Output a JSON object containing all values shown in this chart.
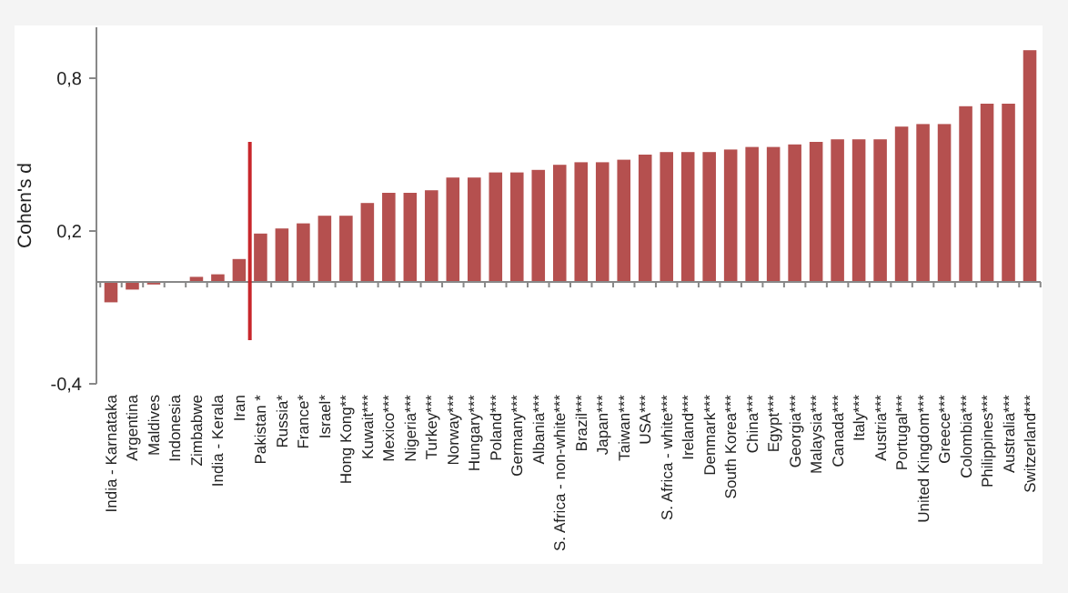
{
  "chart_data": {
    "type": "bar",
    "ylabel": "Cohen's d",
    "categories": [
      "India - Karnataka",
      "Argentina",
      "Maldives",
      "Indonesia",
      "Zimbabwe",
      "India - Kerala",
      "Iran",
      "Pakistan *",
      "Russia*",
      "France*",
      "Israel*",
      "Hong Kong**",
      "Kuwait***",
      "Mexico***",
      "Nigeria***",
      "Turkey***",
      "Norway***",
      "Hungary***",
      "Poland***",
      "Germany***",
      "Albania***",
      "S. Africa - non-white***",
      "Brazil***",
      "Japan***",
      "Taiwan***",
      "USA***",
      "S. Africa - white***",
      "Ireland***",
      "Denmark***",
      "South Korea***",
      "China***",
      "Egypt***",
      "Georgia***",
      "Malaysia***",
      "Canada***",
      "Italy***",
      "Austria***",
      "Portugal***",
      "United Kingdom***",
      "Greece***",
      "Colombia***",
      "Philippines***",
      "Australia***",
      "Switzerland***"
    ],
    "values": [
      -0.08,
      -0.03,
      -0.01,
      0.0,
      0.02,
      0.03,
      0.09,
      0.19,
      0.21,
      0.23,
      0.26,
      0.26,
      0.31,
      0.35,
      0.35,
      0.36,
      0.41,
      0.41,
      0.43,
      0.43,
      0.44,
      0.46,
      0.47,
      0.47,
      0.48,
      0.5,
      0.51,
      0.51,
      0.51,
      0.52,
      0.53,
      0.53,
      0.54,
      0.55,
      0.56,
      0.56,
      0.56,
      0.61,
      0.62,
      0.62,
      0.69,
      0.7,
      0.7,
      0.91
    ],
    "color": "#b5504f",
    "ylim": [
      -0.4,
      1.0
    ],
    "yticks": [
      {
        "value": -0.4,
        "label": "-0,4"
      },
      {
        "value": 0.2,
        "label": "0,2"
      },
      {
        "value": 0.8,
        "label": "0,8"
      }
    ],
    "grid": false
  }
}
